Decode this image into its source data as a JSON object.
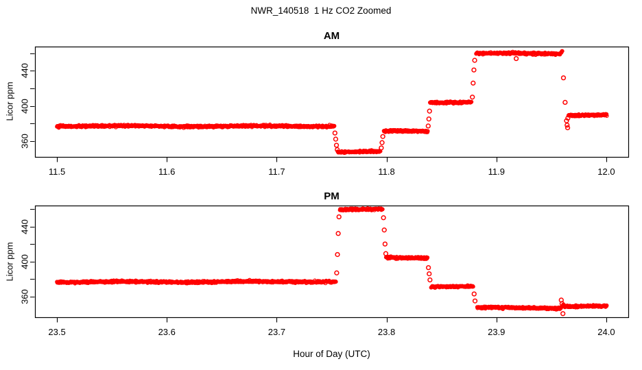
{
  "title": "NWR_140518  1 Hz CO2 Zoomed",
  "xlabel": "Hour of Day (UTC)",
  "marker_color": "#ff0000",
  "axis_color": "#000000",
  "background_color": "#ffffff",
  "chart_data": [
    {
      "type": "scatter",
      "title": "AM",
      "ylabel": "Licor ppm",
      "marker": "open-circle",
      "color": "#ff0000",
      "xlim": [
        11.48,
        12.02
      ],
      "ylim": [
        341.7,
        467.7
      ],
      "xticks": [
        {
          "v": 11.5,
          "label": "11.5"
        },
        {
          "v": 11.6,
          "label": "11.6"
        },
        {
          "v": 11.7,
          "label": "11.7"
        },
        {
          "v": 11.8,
          "label": "11.8"
        },
        {
          "v": 11.9,
          "label": "11.9"
        },
        {
          "v": 12.0,
          "label": "12.0"
        }
      ],
      "yticks": [
        {
          "v": 360,
          "label": "360"
        },
        {
          "v": 380,
          "label": ""
        },
        {
          "v": 400,
          "label": "400"
        },
        {
          "v": 420,
          "label": ""
        },
        {
          "v": 440,
          "label": "440"
        },
        {
          "v": 460,
          "label": ""
        }
      ],
      "sample_rate_hz": 1,
      "segments": [
        {
          "x0": 11.5,
          "x1": 11.7525,
          "y": 377.0
        },
        {
          "x0": 11.7555,
          "x1": 11.7945,
          "y": 347.5
        },
        {
          "x0": 11.7975,
          "x1": 11.8375,
          "y": 371.0
        },
        {
          "x0": 11.8395,
          "x1": 11.8775,
          "y": 404.0
        },
        {
          "x0": 11.8815,
          "x1": 11.958,
          "y": 459.5
        },
        {
          "x0": 11.9655,
          "x1": 12.0005,
          "y": 389.5
        }
      ],
      "ramps": [
        {
          "x0": 11.958,
          "x1": 11.9602,
          "y0": 459.5,
          "y1": 463.5
        }
      ],
      "points": [
        [
          11.753,
          369.0
        ],
        [
          11.7537,
          362.0
        ],
        [
          11.7544,
          355.0
        ],
        [
          11.7551,
          350.0
        ],
        [
          11.7952,
          352.0
        ],
        [
          11.7959,
          358.0
        ],
        [
          11.7966,
          365.0
        ],
        [
          11.8379,
          377.0
        ],
        [
          11.8385,
          385.0
        ],
        [
          11.8391,
          394.0
        ],
        [
          11.8781,
          410.0
        ],
        [
          11.8788,
          426.0
        ],
        [
          11.8795,
          441.0
        ],
        [
          11.8802,
          452.0
        ],
        [
          11.918,
          454.0
        ],
        [
          11.961,
          432.0
        ],
        [
          11.9625,
          404.0
        ],
        [
          11.9638,
          383.0
        ],
        [
          11.9643,
          378.0
        ],
        [
          11.9648,
          375.0
        ],
        [
          11.965,
          386.0
        ]
      ]
    },
    {
      "type": "scatter",
      "title": "PM",
      "ylabel": "Licor ppm",
      "marker": "open-circle",
      "color": "#ff0000",
      "xlim": [
        23.48,
        24.02
      ],
      "ylim": [
        336.4,
        463.9
      ],
      "xticks": [
        {
          "v": 23.5,
          "label": "23.5"
        },
        {
          "v": 23.6,
          "label": "23.6"
        },
        {
          "v": 23.7,
          "label": "23.7"
        },
        {
          "v": 23.8,
          "label": "23.8"
        },
        {
          "v": 23.9,
          "label": "23.9"
        },
        {
          "v": 24.0,
          "label": "24.0"
        }
      ],
      "yticks": [
        {
          "v": 360,
          "label": "360"
        },
        {
          "v": 380,
          "label": ""
        },
        {
          "v": 400,
          "label": "400"
        },
        {
          "v": 420,
          "label": ""
        },
        {
          "v": 440,
          "label": "440"
        },
        {
          "v": 460,
          "label": ""
        }
      ],
      "sample_rate_hz": 1,
      "segments": [
        {
          "x0": 23.5,
          "x1": 23.754,
          "y": 377.0
        },
        {
          "x0": 23.7575,
          "x1": 23.7965,
          "y": 459.0
        },
        {
          "x0": 23.7995,
          "x1": 23.8375,
          "y": 404.0
        },
        {
          "x0": 23.8405,
          "x1": 23.879,
          "y": 371.5
        },
        {
          "x0": 23.8825,
          "x1": 23.958,
          "y": 347.0
        },
        {
          "x0": 23.9615,
          "x1": 24.0005,
          "y": 349.3
        }
      ],
      "ramps": [
        {
          "x0": 23.958,
          "x1": 23.9615,
          "y0": 347.0,
          "y1": 351.5
        }
      ],
      "points": [
        [
          23.7546,
          387.0
        ],
        [
          23.7553,
          408.0
        ],
        [
          23.756,
          432.0
        ],
        [
          23.7567,
          451.0
        ],
        [
          23.7972,
          450.0
        ],
        [
          23.7979,
          436.0
        ],
        [
          23.7986,
          420.0
        ],
        [
          23.7993,
          409.0
        ],
        [
          23.8381,
          393.0
        ],
        [
          23.8388,
          386.0
        ],
        [
          23.8395,
          379.0
        ],
        [
          23.8797,
          363.0
        ],
        [
          23.8805,
          355.0
        ],
        [
          23.959,
          356.0
        ],
        [
          23.9597,
          352.0
        ],
        [
          23.9605,
          340.5
        ]
      ]
    }
  ]
}
